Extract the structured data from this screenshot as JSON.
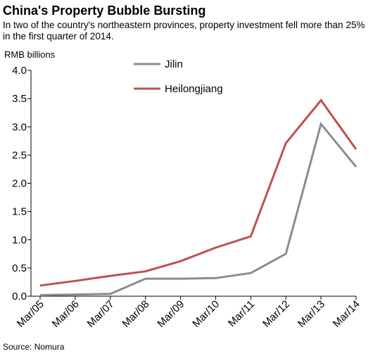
{
  "header": {
    "title": "China's Property Bubble Bursting",
    "subtitle": "In two of the country's northeastern provinces, property investment fell more than 25% in the first quarter of 2014."
  },
  "footer": {
    "source": "Source: Nomura"
  },
  "chart_data": {
    "type": "line",
    "title": "China's Property Bubble Bursting",
    "subtitle": "In two of the country's northeastern provinces, property investment fell more than 25% in the first quarter of 2014.",
    "ylabel": "RMB billions",
    "xlabel": "",
    "categories": [
      "Mar/05",
      "Mar/06",
      "Mar/07",
      "Mar/08",
      "Mar/09",
      "Mar/10",
      "Mar/11",
      "Mar/12",
      "Mar/13",
      "Mar/14"
    ],
    "ylim": [
      0,
      4.0
    ],
    "yticks": [
      "0.0",
      "0.5",
      "1.0",
      "1.5",
      "2.0",
      "2.5",
      "3.0",
      "3.5",
      "4.0"
    ],
    "grid": false,
    "legend_placement": "top-center",
    "series": [
      {
        "name": "Jilin",
        "color": "#8c8c8c",
        "values": [
          0.02,
          0.03,
          0.04,
          0.31,
          0.31,
          0.32,
          0.41,
          0.75,
          3.05,
          2.29
        ]
      },
      {
        "name": "Heilongjiang",
        "color": "#c0504d",
        "values": [
          0.19,
          0.27,
          0.36,
          0.44,
          0.62,
          0.86,
          1.06,
          2.71,
          3.47,
          2.6
        ]
      }
    ]
  }
}
